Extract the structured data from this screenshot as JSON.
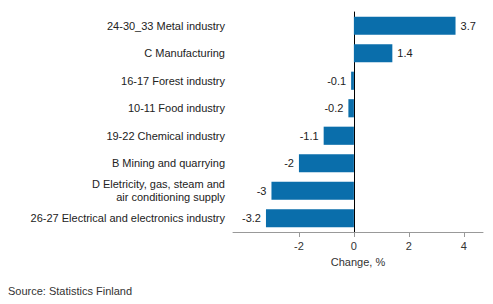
{
  "chart_data": {
    "type": "bar",
    "orientation": "horizontal",
    "categories": [
      "24-30_33 Metal industry",
      "C Manufacturing",
      "16-17 Forest industry",
      "10-11 Food industry",
      "19-22 Chemical industry",
      "B Mining and quarrying",
      "D Eletricity, gas, steam and\nair conditioning supply",
      "26-27 Electrical and electronics industry"
    ],
    "values": [
      3.7,
      1.4,
      -0.1,
      -0.2,
      -1.1,
      -2.0,
      -3.0,
      -3.2
    ],
    "color": "#0a6eab",
    "xlabel": "Change, %",
    "source": "Source: Statistics Finland",
    "xlim": [
      -4.4,
      4.7
    ],
    "xticks": [
      -2,
      0,
      2,
      4
    ],
    "grid": false,
    "data_labels": true
  }
}
